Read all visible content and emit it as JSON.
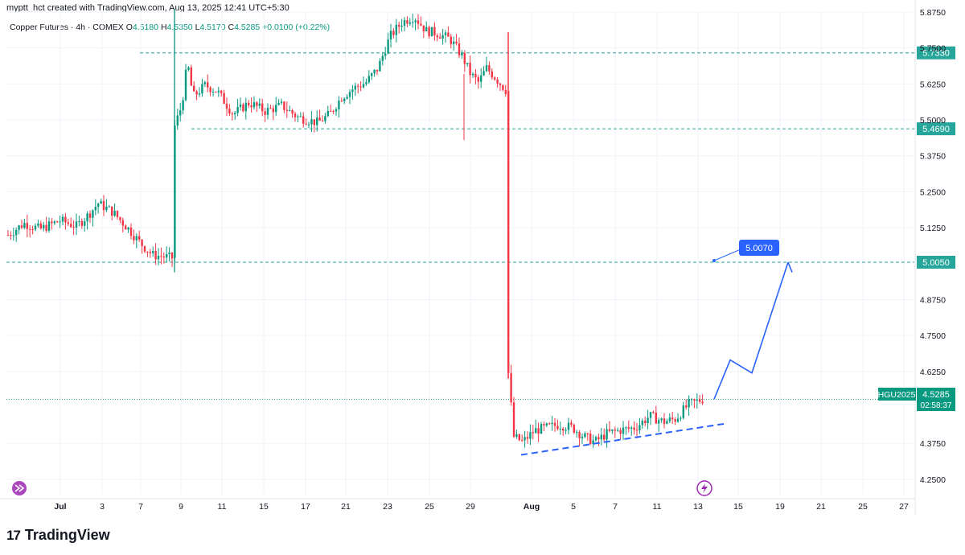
{
  "header": {
    "creator_line": "myptt_hct created with TradingView.com, Aug 13, 2025 12:41 UTC+5:30"
  },
  "legend": {
    "symbol": "Copper Futures · 4h · COMEX",
    "open_label": "O",
    "open": "4.5180",
    "high_label": "H",
    "high": "4.5350",
    "low_label": "L",
    "low": "4.5170",
    "close_label": "C",
    "close": "4.5285",
    "change": "+0.0100 (+0.22%)"
  },
  "footer": {
    "brand": "TradingView",
    "brand_mark": "17"
  },
  "colors": {
    "up": "#089981",
    "down": "#f23645",
    "accent": "#2962ff",
    "level": "#26a69a"
  },
  "price_tag": {
    "symbol": "HGU2025",
    "price": "4.5285",
    "countdown": "02:58:37"
  },
  "annotation": {
    "label": "5.0070"
  },
  "icons": {
    "left_bottom": "replay-icon",
    "right_bottom": "flash-icon"
  },
  "chart_data": {
    "type": "candlestick",
    "timeframe": "4h",
    "ylim": [
      4.19,
      5.89
    ],
    "y_ticks": [
      "5.8750",
      "5.7500",
      "5.6250",
      "5.5000",
      "5.3750",
      "5.2500",
      "5.1250",
      "4.8750",
      "4.7500",
      "4.6250",
      "4.3750",
      "4.2500"
    ],
    "x_ticks": [
      "Jul",
      "3",
      "7",
      "9",
      "11",
      "15",
      "17",
      "21",
      "23",
      "25",
      "29",
      "Aug",
      "5",
      "7",
      "11",
      "13",
      "15",
      "19",
      "21",
      "25",
      "27"
    ],
    "horizontal_levels": [
      {
        "value": 5.733,
        "label": "5.7330"
      },
      {
        "value": 5.469,
        "label": "5.4690"
      },
      {
        "value": 5.005,
        "label": "5.0050"
      }
    ],
    "last_price": 4.5285,
    "segments": [
      {
        "period": "late Jun",
        "approx_range": [
          5.0,
          5.21
        ]
      },
      {
        "period": "Jul 8 gap up",
        "approx_range": [
          4.99,
          5.88
        ]
      },
      {
        "period": "Jul 9 - Jul 21",
        "approx_range": [
          5.45,
          5.73
        ]
      },
      {
        "period": "Jul 21 - Jul 25 peak",
        "approx_range": [
          5.6,
          5.88
        ]
      },
      {
        "period": "Jul 26 - Jul 30",
        "approx_range": [
          5.43,
          5.81
        ]
      },
      {
        "period": "Jul 30 crash",
        "approx_range": [
          4.34,
          5.8
        ]
      },
      {
        "period": "Aug 1 - Aug 13",
        "approx_range": [
          4.34,
          4.54
        ]
      }
    ],
    "projection_path": [
      4.5285,
      4.665,
      4.62,
      5.005,
      4.97
    ],
    "support_trendline": [
      4.335,
      4.445
    ]
  }
}
